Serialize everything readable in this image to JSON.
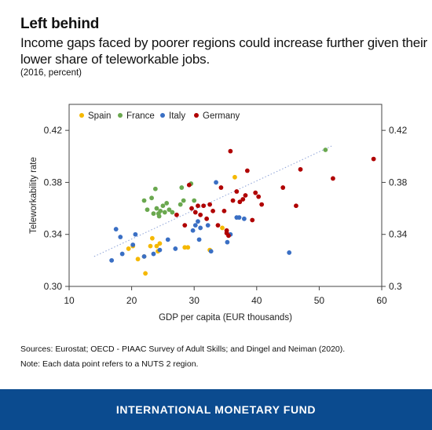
{
  "header": {
    "title": "Left behind",
    "subtitle": "Income gaps faced by poorer regions could increase further given their lower share of teleworkable jobs.",
    "unit_note": "(2016, percent)"
  },
  "footer": {
    "sources": "Sources: Eurostat; OECD - PIAAC Survey of Adult Skills; and Dingel and Neiman (2020).",
    "note": "Note: Each data point refers to a NUTS 2 region.",
    "brand": "INTERNATIONAL MONETARY FUND"
  },
  "colors": {
    "Spain": "#f5b800",
    "France": "#6aa84f",
    "Italy": "#3a6fc4",
    "Germany": "#b00000",
    "trendline": "#8fa4d8",
    "banner": "#0b4b8f"
  },
  "chart_data": {
    "type": "scatter",
    "xlabel": "GDP per capita (EUR thousands)",
    "ylabel": "Teleworkability rate",
    "xlim": [
      10,
      60
    ],
    "ylim": [
      0.3,
      0.44
    ],
    "xticks": [
      "10",
      "20",
      "30",
      "40",
      "50",
      "60"
    ],
    "yticks_left": [
      "0.30",
      "0.34",
      "0.38",
      "0.42"
    ],
    "yticks_right": [
      "0.3",
      "0.34",
      "0.38",
      "0.42"
    ],
    "ytick_values": [
      0.3,
      0.34,
      0.38,
      0.42
    ],
    "xtick_values": [
      10,
      20,
      30,
      40,
      50,
      60
    ],
    "legend_position": "top-left",
    "grid": false,
    "trendline": {
      "style": "dotted",
      "x": [
        14,
        52
      ],
      "y": [
        0.323,
        0.408
      ]
    },
    "series": [
      {
        "name": "Spain",
        "points": [
          [
            19.5,
            0.329
          ],
          [
            20.2,
            0.331
          ],
          [
            21,
            0.321
          ],
          [
            22.2,
            0.31
          ],
          [
            23,
            0.331
          ],
          [
            23.3,
            0.337
          ],
          [
            24,
            0.331
          ],
          [
            24.2,
            0.327
          ],
          [
            24.5,
            0.333
          ],
          [
            28.5,
            0.33
          ],
          [
            29,
            0.33
          ],
          [
            32.5,
            0.328
          ],
          [
            34.5,
            0.345
          ],
          [
            36.5,
            0.384
          ],
          [
            22,
            0.323
          ]
        ]
      },
      {
        "name": "France",
        "points": [
          [
            22,
            0.366
          ],
          [
            22.5,
            0.359
          ],
          [
            23.2,
            0.368
          ],
          [
            23.5,
            0.356
          ],
          [
            23.8,
            0.375
          ],
          [
            24,
            0.36
          ],
          [
            24.3,
            0.356
          ],
          [
            24.6,
            0.358
          ],
          [
            25,
            0.362
          ],
          [
            25.3,
            0.357
          ],
          [
            25.6,
            0.364
          ],
          [
            26,
            0.359
          ],
          [
            26.5,
            0.357
          ],
          [
            27.8,
            0.363
          ],
          [
            28,
            0.376
          ],
          [
            28.3,
            0.366
          ],
          [
            29.5,
            0.379
          ],
          [
            30,
            0.366
          ],
          [
            24.4,
            0.354
          ],
          [
            51,
            0.405
          ]
        ]
      },
      {
        "name": "Italy",
        "points": [
          [
            16.8,
            0.32
          ],
          [
            17.5,
            0.344
          ],
          [
            18.2,
            0.338
          ],
          [
            18.5,
            0.325
          ],
          [
            20.2,
            0.332
          ],
          [
            20.6,
            0.34
          ],
          [
            22,
            0.323
          ],
          [
            23.5,
            0.325
          ],
          [
            24.5,
            0.328
          ],
          [
            25.8,
            0.336
          ],
          [
            27,
            0.329
          ],
          [
            29.8,
            0.343
          ],
          [
            30.2,
            0.347
          ],
          [
            30.6,
            0.35
          ],
          [
            31,
            0.345
          ],
          [
            32.2,
            0.347
          ],
          [
            32.7,
            0.327
          ],
          [
            33.5,
            0.38
          ],
          [
            35.3,
            0.334
          ],
          [
            35.8,
            0.34
          ],
          [
            36.8,
            0.353
          ],
          [
            37.2,
            0.353
          ],
          [
            38,
            0.352
          ],
          [
            45.2,
            0.326
          ],
          [
            30.8,
            0.336
          ]
        ]
      },
      {
        "name": "Germany",
        "points": [
          [
            27.2,
            0.355
          ],
          [
            28.5,
            0.347
          ],
          [
            29.2,
            0.378
          ],
          [
            29.6,
            0.36
          ],
          [
            30.2,
            0.357
          ],
          [
            30.6,
            0.362
          ],
          [
            31,
            0.355
          ],
          [
            31.5,
            0.362
          ],
          [
            32,
            0.352
          ],
          [
            32.5,
            0.363
          ],
          [
            33,
            0.358
          ],
          [
            33.8,
            0.347
          ],
          [
            34.3,
            0.376
          ],
          [
            34.8,
            0.358
          ],
          [
            35.2,
            0.341
          ],
          [
            35.5,
            0.339
          ],
          [
            35.8,
            0.404
          ],
          [
            36.2,
            0.366
          ],
          [
            36.8,
            0.373
          ],
          [
            37.3,
            0.365
          ],
          [
            37.8,
            0.367
          ],
          [
            38.5,
            0.389
          ],
          [
            39.3,
            0.351
          ],
          [
            39.8,
            0.372
          ],
          [
            40.3,
            0.369
          ],
          [
            40.8,
            0.363
          ],
          [
            44.2,
            0.376
          ],
          [
            46.3,
            0.362
          ],
          [
            47,
            0.39
          ],
          [
            52.2,
            0.383
          ],
          [
            58.7,
            0.398
          ],
          [
            38.2,
            0.37
          ],
          [
            35.2,
            0.343
          ]
        ]
      }
    ]
  }
}
